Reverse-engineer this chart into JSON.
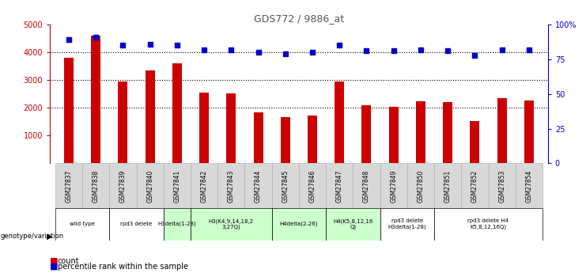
{
  "title": "GDS772 / 9886_at",
  "samples": [
    "GSM27837",
    "GSM27838",
    "GSM27839",
    "GSM27840",
    "GSM27841",
    "GSM27842",
    "GSM27843",
    "GSM27844",
    "GSM27845",
    "GSM27846",
    "GSM27847",
    "GSM27848",
    "GSM27849",
    "GSM27850",
    "GSM27851",
    "GSM27852",
    "GSM27853",
    "GSM27854"
  ],
  "counts": [
    3800,
    4600,
    2950,
    3350,
    3600,
    2550,
    2520,
    1850,
    1680,
    1730,
    2950,
    2100,
    2050,
    2250,
    2200,
    1520,
    2350,
    2260
  ],
  "percentiles": [
    89,
    91,
    85,
    86,
    85,
    82,
    82,
    80,
    79,
    80,
    85,
    81,
    81,
    82,
    81,
    78,
    82,
    82
  ],
  "bar_color": "#cc0000",
  "dot_color": "#0000cc",
  "ylim_left": [
    0,
    5000
  ],
  "ylim_right": [
    0,
    100
  ],
  "yticks_left": [
    1000,
    2000,
    3000,
    4000,
    5000
  ],
  "yticks_right": [
    0,
    25,
    50,
    75,
    100
  ],
  "groups": [
    {
      "label": "wild type",
      "start": 0,
      "end": 1,
      "color": "#ffffff"
    },
    {
      "label": "rpd3 delete",
      "start": 2,
      "end": 2,
      "color": "#ffffff"
    },
    {
      "label": "H3delta(1-28)",
      "start": 3,
      "end": 3,
      "color": "#ccffcc"
    },
    {
      "label": "H3(K4,9,14,18,2\n3,27Q)",
      "start": 4,
      "end": 6,
      "color": "#ccffcc"
    },
    {
      "label": "H4delta(2-26)",
      "start": 7,
      "end": 8,
      "color": "#ccffcc"
    },
    {
      "label": "H4(K5,8,12,16\nQ)",
      "start": 9,
      "end": 10,
      "color": "#ccffcc"
    },
    {
      "label": "rpd3 delete\nH3delta(1-28)",
      "start": 11,
      "end": 12,
      "color": "#ffffff"
    },
    {
      "label": "rpd3 delete H4\nK5,8,12,16Q)",
      "start": 13,
      "end": 17,
      "color": "#ffffff"
    }
  ],
  "xlabel_color": "#cc0000",
  "ylabel_right_color": "#0000cc",
  "title_color": "#555555",
  "bg_color": "#ffffff",
  "sample_bg_color": "#d8d8d8"
}
